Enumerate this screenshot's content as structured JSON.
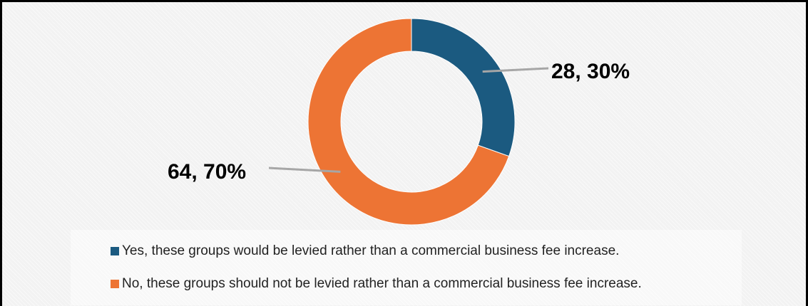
{
  "chart_data": {
    "type": "pie",
    "variant": "donut",
    "title": "",
    "categories": [
      "Yes, these groups would be levied rather than a commercial business fee increase.",
      "No, these groups should not be levied rather than a commercial business fee increase."
    ],
    "values": [
      28,
      64
    ],
    "percentages": [
      30,
      70
    ],
    "data_labels": [
      "28, 30%",
      "64, 70%"
    ],
    "colors": [
      "#1b5a80",
      "#ed7434"
    ],
    "legend_position": "bottom"
  }
}
